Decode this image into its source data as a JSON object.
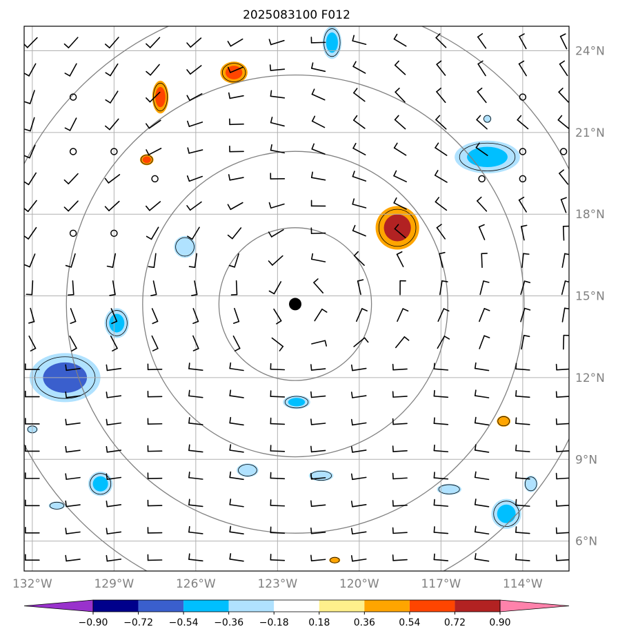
{
  "chart_data": {
    "type": "heatmap",
    "title": "2025083100 F012",
    "x_ticks": [
      "132°W",
      "129°W",
      "126°W",
      "123°W",
      "120°W",
      "117°W",
      "114°W"
    ],
    "y_ticks": [
      "24°N",
      "21°N",
      "18°N",
      "15°N",
      "12°N",
      "9°N",
      "6°N"
    ],
    "xlim": [
      -132.3,
      -112.3
    ],
    "ylim": [
      4.9,
      24.9
    ],
    "grid": true,
    "center": {
      "lon": -122.35,
      "lat": 14.7
    },
    "range_rings_deg": [
      2.8,
      5.6,
      8.4,
      11.2
    ],
    "colorbar": {
      "levels": [
        "−0.90",
        "−0.72",
        "−0.54",
        "−0.36",
        "−0.18",
        "0.18",
        "0.36",
        "0.54",
        "0.72",
        "0.90"
      ],
      "colors": [
        "#9932cc",
        "#00008b",
        "#3a5fcd",
        "#00bfff",
        "#b0e2ff",
        "#ffffff",
        "#fff08c",
        "#ffa500",
        "#ff4500",
        "#b22222",
        "#ff82ab"
      ],
      "extend": "both"
    },
    "fields": [
      {
        "lon": -121.0,
        "lat": 24.3,
        "rx": 0.35,
        "ry": 0.6,
        "level": -0.36,
        "max_level": -0.54
      },
      {
        "lon": -124.6,
        "lat": 23.2,
        "rx": 0.5,
        "ry": 0.4,
        "level": 0.36,
        "max_level": 0.54
      },
      {
        "lon": -127.3,
        "lat": 22.3,
        "rx": 0.3,
        "ry": 0.6,
        "level": 0.36,
        "max_level": 0.54
      },
      {
        "lon": -115.3,
        "lat": 20.1,
        "rx": 1.2,
        "ry": 0.6,
        "level": -0.36,
        "max_level": -0.54
      },
      {
        "lon": -127.8,
        "lat": 20.0,
        "rx": 0.25,
        "ry": 0.2,
        "level": 0.36,
        "max_level": 0.54
      },
      {
        "lon": -118.6,
        "lat": 17.5,
        "rx": 0.8,
        "ry": 0.8,
        "level": 0.36,
        "max_level": 0.72
      },
      {
        "lon": -126.4,
        "lat": 16.8,
        "rx": 0.4,
        "ry": 0.4,
        "level": -0.36,
        "max_level": -0.36
      },
      {
        "lon": -128.9,
        "lat": 14.0,
        "rx": 0.45,
        "ry": 0.55,
        "level": -0.36,
        "max_level": -0.54
      },
      {
        "lon": -130.8,
        "lat": 12.0,
        "rx": 1.3,
        "ry": 0.9,
        "level": -0.36,
        "max_level": -0.72
      },
      {
        "lon": -122.3,
        "lat": 11.1,
        "rx": 0.5,
        "ry": 0.25,
        "level": -0.36,
        "max_level": -0.54
      },
      {
        "lon": -114.7,
        "lat": 10.4,
        "rx": 0.25,
        "ry": 0.2,
        "level": 0.36,
        "max_level": 0.36
      },
      {
        "lon": -132.0,
        "lat": 10.1,
        "rx": 0.2,
        "ry": 0.15,
        "level": -0.36,
        "max_level": -0.36
      },
      {
        "lon": -124.1,
        "lat": 8.6,
        "rx": 0.4,
        "ry": 0.25,
        "level": -0.36,
        "max_level": -0.36
      },
      {
        "lon": -121.4,
        "lat": 8.4,
        "rx": 0.45,
        "ry": 0.2,
        "level": -0.36,
        "max_level": -0.36
      },
      {
        "lon": -129.5,
        "lat": 8.1,
        "rx": 0.45,
        "ry": 0.45,
        "level": -0.36,
        "max_level": -0.54
      },
      {
        "lon": -116.7,
        "lat": 7.9,
        "rx": 0.45,
        "ry": 0.2,
        "level": -0.36,
        "max_level": -0.36
      },
      {
        "lon": -131.1,
        "lat": 7.3,
        "rx": 0.3,
        "ry": 0.15,
        "level": -0.36,
        "max_level": -0.36
      },
      {
        "lon": -114.6,
        "lat": 7.0,
        "rx": 0.55,
        "ry": 0.55,
        "level": -0.36,
        "max_level": -0.54
      },
      {
        "lon": -113.7,
        "lat": 8.1,
        "rx": 0.25,
        "ry": 0.3,
        "level": -0.36,
        "max_level": -0.36
      },
      {
        "lon": -120.9,
        "lat": 5.3,
        "rx": 0.2,
        "ry": 0.12,
        "level": 0.36,
        "max_level": 0.36
      },
      {
        "lon": -115.3,
        "lat": 21.5,
        "rx": 0.15,
        "ry": 0.15,
        "level": -0.36,
        "max_level": -0.36
      }
    ]
  }
}
